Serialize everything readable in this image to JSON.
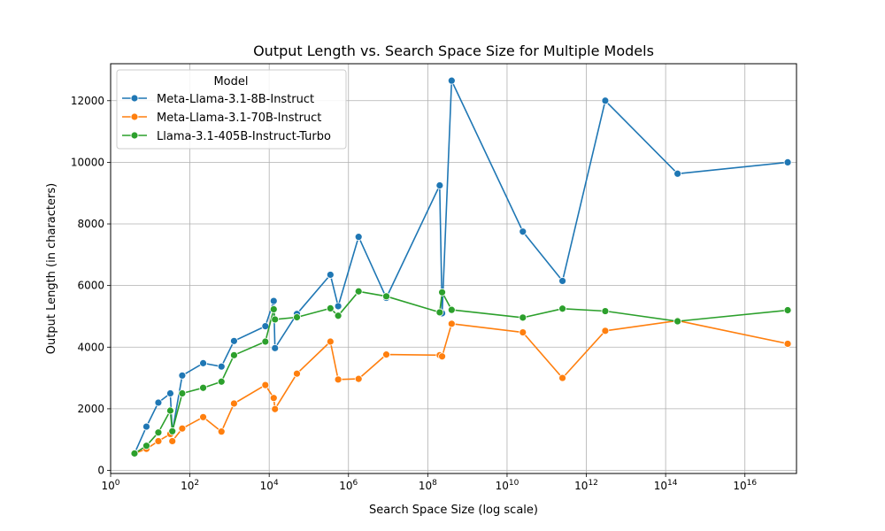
{
  "chart_data": {
    "type": "line",
    "title": "Output Length vs. Search Space Size for Multiple Models",
    "xlabel": "Search Space Size (log scale)",
    "ylabel": "Output Length (in characters)",
    "x_scale": "log",
    "xlim": [
      1,
      2e+17
    ],
    "ylim": [
      -100,
      13200
    ],
    "x_ticks": [
      {
        "value": 1,
        "base": "10",
        "exp": "0"
      },
      {
        "value": 100,
        "base": "10",
        "exp": "2"
      },
      {
        "value": 10000,
        "base": "10",
        "exp": "4"
      },
      {
        "value": 1000000,
        "base": "10",
        "exp": "6"
      },
      {
        "value": 100000000,
        "base": "10",
        "exp": "8"
      },
      {
        "value": 10000000000,
        "base": "10",
        "exp": "10"
      },
      {
        "value": 1000000000000,
        "base": "10",
        "exp": "12"
      },
      {
        "value": 100000000000000,
        "base": "10",
        "exp": "14"
      },
      {
        "value": 10000000000000000,
        "base": "10",
        "exp": "16"
      }
    ],
    "y_ticks": [
      {
        "value": 0,
        "label": "0"
      },
      {
        "value": 2000,
        "label": "2000"
      },
      {
        "value": 4000,
        "label": "4000"
      },
      {
        "value": 6000,
        "label": "6000"
      },
      {
        "value": 8000,
        "label": "8000"
      },
      {
        "value": 10000,
        "label": "10000"
      },
      {
        "value": 12000,
        "label": "12000"
      }
    ],
    "grid": true,
    "legend": {
      "title": "Model",
      "placement": "top-left"
    },
    "series": [
      {
        "name": "Meta-Llama-3.1-8B-Instruct",
        "color": "#1f77b4",
        "points": [
          [
            4,
            550
          ],
          [
            8,
            1420
          ],
          [
            16,
            2200
          ],
          [
            32,
            2500
          ],
          [
            36,
            1250
          ],
          [
            64,
            3080
          ],
          [
            216,
            3480
          ],
          [
            625,
            3370
          ],
          [
            1296,
            4200
          ],
          [
            8000,
            4680
          ],
          [
            13000,
            5500
          ],
          [
            14000,
            3970
          ],
          [
            50000,
            5080
          ],
          [
            350000,
            6350
          ],
          [
            550000,
            5330
          ],
          [
            1800000,
            7580
          ],
          [
            9000000,
            5600
          ],
          [
            200000000,
            9250
          ],
          [
            230000000,
            5100
          ],
          [
            400000000,
            12650
          ],
          [
            25000000000,
            7750
          ],
          [
            250000000000,
            6150
          ],
          [
            3000000000000,
            12000
          ],
          [
            200000000000000,
            9630
          ],
          [
            120000000000000000,
            10000
          ]
        ]
      },
      {
        "name": "Meta-Llama-3.1-70B-Instruct",
        "color": "#ff7f0e",
        "points": [
          [
            4,
            550
          ],
          [
            8,
            700
          ],
          [
            16,
            950
          ],
          [
            32,
            1180
          ],
          [
            36,
            950
          ],
          [
            64,
            1360
          ],
          [
            216,
            1730
          ],
          [
            625,
            1260
          ],
          [
            1296,
            2170
          ],
          [
            8000,
            2770
          ],
          [
            13000,
            2350
          ],
          [
            14000,
            1990
          ],
          [
            50000,
            3140
          ],
          [
            350000,
            4180
          ],
          [
            550000,
            2950
          ],
          [
            1800000,
            2970
          ],
          [
            9000000,
            3760
          ],
          [
            200000000,
            3740
          ],
          [
            230000000,
            3700
          ],
          [
            400000000,
            4760
          ],
          [
            25000000000,
            4480
          ],
          [
            250000000000,
            3000
          ],
          [
            3000000000000,
            4530
          ],
          [
            200000000000000,
            4860
          ],
          [
            120000000000000000,
            4110
          ]
        ]
      },
      {
        "name": "Llama-3.1-405B-Instruct-Turbo",
        "color": "#2ca02c",
        "points": [
          [
            4,
            550
          ],
          [
            8,
            800
          ],
          [
            16,
            1230
          ],
          [
            32,
            1940
          ],
          [
            36,
            1270
          ],
          [
            64,
            2500
          ],
          [
            216,
            2680
          ],
          [
            625,
            2880
          ],
          [
            1296,
            3740
          ],
          [
            8000,
            4180
          ],
          [
            13000,
            5230
          ],
          [
            14000,
            4900
          ],
          [
            50000,
            4970
          ],
          [
            350000,
            5260
          ],
          [
            550000,
            5020
          ],
          [
            1800000,
            5810
          ],
          [
            9000000,
            5650
          ],
          [
            200000000,
            5130
          ],
          [
            230000000,
            5780
          ],
          [
            400000000,
            5210
          ],
          [
            25000000000,
            4960
          ],
          [
            250000000000,
            5250
          ],
          [
            3000000000000,
            5170
          ],
          [
            200000000000000,
            4840
          ],
          [
            120000000000000000,
            5200
          ]
        ]
      }
    ]
  }
}
